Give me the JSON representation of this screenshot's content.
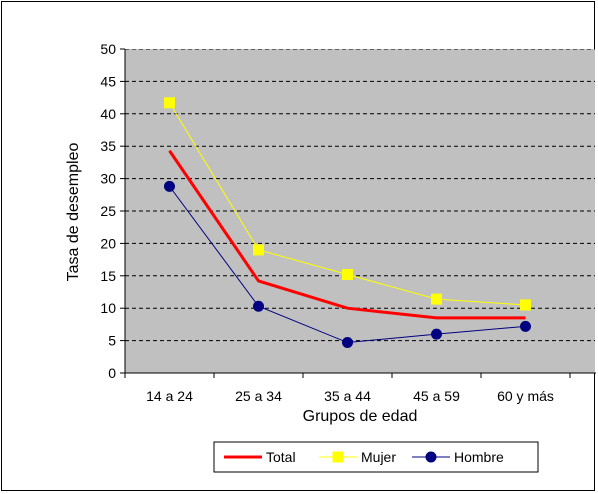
{
  "chart_data": {
    "type": "line",
    "categories": [
      "14 a 24",
      "25 a 34",
      "35 a 44",
      "45 a 59",
      "60 y más"
    ],
    "series": [
      {
        "name": "Total",
        "values": [
          34.3,
          14.2,
          10.0,
          8.5,
          8.5
        ],
        "color": "#ff0000",
        "marker": "none"
      },
      {
        "name": "Mujer",
        "values": [
          41.7,
          19.0,
          15.2,
          11.4,
          10.5
        ],
        "color": "#ffff00",
        "marker": "square"
      },
      {
        "name": "Hombre",
        "values": [
          28.8,
          10.3,
          4.7,
          6.0,
          7.2
        ],
        "color": "#000080",
        "marker": "circle"
      }
    ],
    "xlabel": "Grupos de edad",
    "ylabel": "Tasa de desempleo",
    "ylim": [
      0,
      50
    ],
    "yticks": [
      0,
      5,
      10,
      15,
      20,
      25,
      30,
      35,
      40,
      45,
      50
    ],
    "grid": true,
    "plot_background": "#c0c0c0",
    "legend_position": "bottom"
  }
}
